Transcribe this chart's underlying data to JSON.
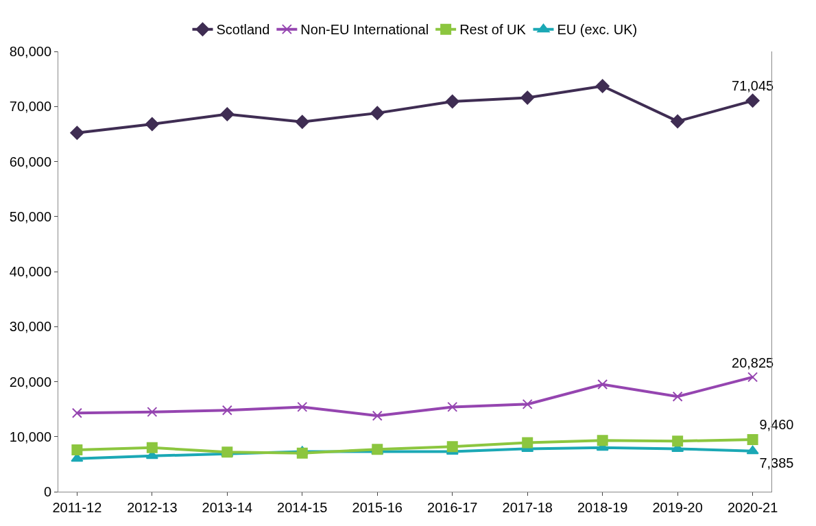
{
  "chart_data": {
    "type": "line",
    "categories": [
      "2011-12",
      "2012-13",
      "2013-14",
      "2014-15",
      "2015-16",
      "2016-17",
      "2017-18",
      "2018-19",
      "2019-20",
      "2020-21"
    ],
    "series": [
      {
        "name": "Scotland",
        "color": "#3f2d53",
        "marker": "diamond",
        "values": [
          65200,
          66800,
          68600,
          67200,
          68800,
          70900,
          71600,
          73700,
          67300,
          71045
        ],
        "value_labels": [
          null,
          null,
          null,
          null,
          null,
          null,
          null,
          null,
          null,
          "71,045"
        ]
      },
      {
        "name": "Non-EU International",
        "color": "#9545b0",
        "marker": "cross",
        "values": [
          14300,
          14500,
          14800,
          15400,
          13800,
          15400,
          15900,
          19500,
          17300,
          20825
        ],
        "value_labels": [
          null,
          null,
          null,
          null,
          null,
          null,
          null,
          null,
          null,
          "20,825"
        ]
      },
      {
        "name": "Rest of UK",
        "color": "#8cc63f",
        "marker": "square",
        "values": [
          7600,
          8000,
          7200,
          7000,
          7700,
          8200,
          8900,
          9300,
          9200,
          9460
        ],
        "value_labels": [
          null,
          null,
          null,
          null,
          null,
          null,
          null,
          null,
          null,
          "9,460"
        ]
      },
      {
        "name": "EU (exc. UK)",
        "color": "#1ba8b5",
        "marker": "triangle",
        "values": [
          6000,
          6500,
          6900,
          7300,
          7300,
          7300,
          7800,
          8000,
          7800,
          7385
        ],
        "value_labels": [
          null,
          null,
          null,
          null,
          null,
          null,
          null,
          null,
          null,
          "7,385"
        ]
      }
    ],
    "ylim": [
      0,
      80000
    ],
    "yticks": [
      {
        "value": 0,
        "label": "0"
      },
      {
        "value": 10000,
        "label": "10,000"
      },
      {
        "value": 20000,
        "label": "20,000"
      },
      {
        "value": 30000,
        "label": "30,000"
      },
      {
        "value": 40000,
        "label": "40,000"
      },
      {
        "value": 50000,
        "label": "50,000"
      },
      {
        "value": 60000,
        "label": "60,000"
      },
      {
        "value": 70000,
        "label": "70,000"
      },
      {
        "value": 80000,
        "label": "80,000"
      }
    ],
    "legend": "top",
    "line_style": "solid"
  }
}
